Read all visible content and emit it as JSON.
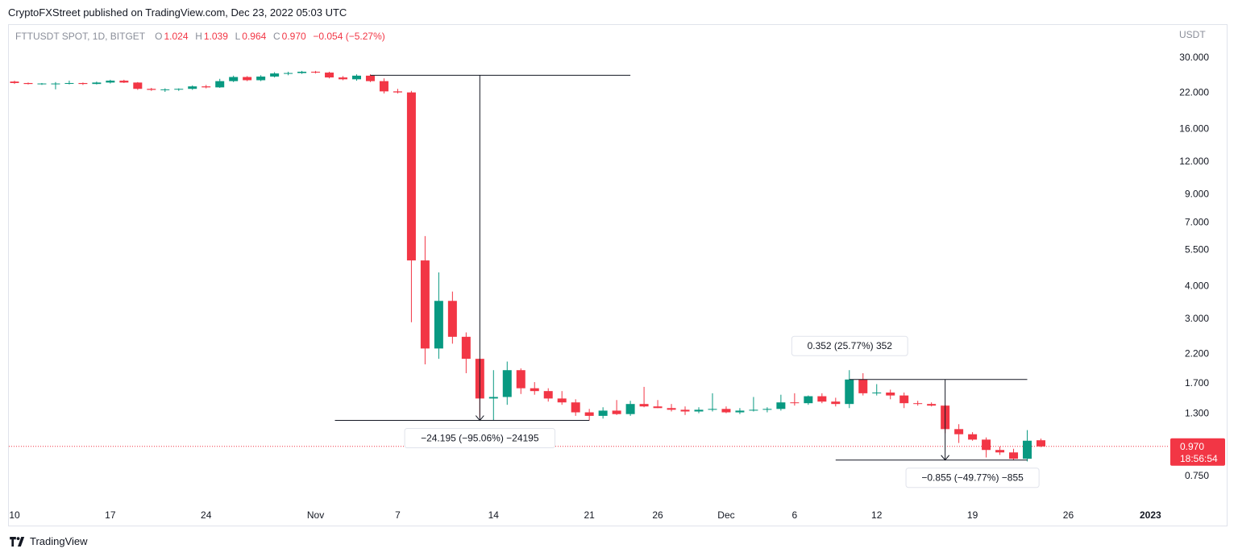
{
  "header": {
    "published": "CryptoFXStreet published on TradingView.com, Dec 23, 2022 05:03 UTC"
  },
  "legend": {
    "symbol": "FTTUSDT SPOT, 1D, BITGET",
    "o_label": "O",
    "o": "1.024",
    "h_label": "H",
    "h": "1.039",
    "l_label": "L",
    "l": "0.964",
    "c_label": "C",
    "c": "0.970",
    "change": "−0.054 (−5.27%)"
  },
  "footer": {
    "brand": "TradingView"
  },
  "colors": {
    "up": "#089981",
    "down": "#f23645",
    "grid": "#e0e3eb",
    "axis_text": "#8a8e99"
  },
  "chart_data": {
    "type": "candlestick",
    "scale": "log",
    "y_axis_title": "USDT",
    "y_ticks": [
      "30.000",
      "22.000",
      "16.000",
      "12.000",
      "9.000",
      "7.000",
      "5.500",
      "4.000",
      "3.000",
      "2.200",
      "1.700",
      "1.300",
      "0.750"
    ],
    "x_ticks": [
      {
        "label": "10",
        "date": "2022-10-10"
      },
      {
        "label": "17",
        "date": "2022-10-17"
      },
      {
        "label": "24",
        "date": "2022-10-24"
      },
      {
        "label": "Nov",
        "date": "2022-11-01"
      },
      {
        "label": "7",
        "date": "2022-11-07"
      },
      {
        "label": "14",
        "date": "2022-11-14"
      },
      {
        "label": "21",
        "date": "2022-11-21"
      },
      {
        "label": "26",
        "date": "2022-11-26"
      },
      {
        "label": "Dec",
        "date": "2022-12-01"
      },
      {
        "label": "6",
        "date": "2022-12-06"
      },
      {
        "label": "12",
        "date": "2022-12-12"
      },
      {
        "label": "19",
        "date": "2022-12-19"
      },
      {
        "label": "26",
        "date": "2022-12-26"
      },
      {
        "label": "2023",
        "date": "2023-01-01"
      }
    ],
    "candles": [
      {
        "date": "2022-10-10",
        "o": 24.2,
        "h": 24.4,
        "l": 23.7,
        "c": 23.9
      },
      {
        "date": "2022-10-11",
        "o": 23.9,
        "h": 24.0,
        "l": 23.6,
        "c": 23.7
      },
      {
        "date": "2022-10-12",
        "o": 23.7,
        "h": 23.9,
        "l": 23.5,
        "c": 23.8
      },
      {
        "date": "2022-10-13",
        "o": 23.7,
        "h": 24.1,
        "l": 22.6,
        "c": 23.8
      },
      {
        "date": "2022-10-14",
        "o": 23.8,
        "h": 24.4,
        "l": 23.6,
        "c": 23.9
      },
      {
        "date": "2022-10-15",
        "o": 23.9,
        "h": 24.0,
        "l": 23.5,
        "c": 23.7
      },
      {
        "date": "2022-10-16",
        "o": 23.7,
        "h": 24.2,
        "l": 23.6,
        "c": 24.0
      },
      {
        "date": "2022-10-17",
        "o": 24.0,
        "h": 24.6,
        "l": 23.8,
        "c": 24.4
      },
      {
        "date": "2022-10-18",
        "o": 24.4,
        "h": 24.6,
        "l": 23.9,
        "c": 24.0
      },
      {
        "date": "2022-10-19",
        "o": 24.0,
        "h": 24.1,
        "l": 22.5,
        "c": 22.7
      },
      {
        "date": "2022-10-20",
        "o": 22.7,
        "h": 22.9,
        "l": 22.3,
        "c": 22.5
      },
      {
        "date": "2022-10-21",
        "o": 22.5,
        "h": 22.8,
        "l": 22.1,
        "c": 22.6
      },
      {
        "date": "2022-10-22",
        "o": 22.6,
        "h": 22.8,
        "l": 22.3,
        "c": 22.7
      },
      {
        "date": "2022-10-23",
        "o": 22.7,
        "h": 23.4,
        "l": 22.5,
        "c": 23.2
      },
      {
        "date": "2022-10-24",
        "o": 23.2,
        "h": 23.5,
        "l": 22.8,
        "c": 23.0
      },
      {
        "date": "2022-10-25",
        "o": 23.0,
        "h": 24.8,
        "l": 22.9,
        "c": 24.3
      },
      {
        "date": "2022-10-26",
        "o": 24.3,
        "h": 25.5,
        "l": 24.1,
        "c": 25.2
      },
      {
        "date": "2022-10-27",
        "o": 25.2,
        "h": 25.4,
        "l": 24.3,
        "c": 24.5
      },
      {
        "date": "2022-10-28",
        "o": 24.5,
        "h": 25.6,
        "l": 24.3,
        "c": 25.3
      },
      {
        "date": "2022-10-29",
        "o": 25.3,
        "h": 26.3,
        "l": 25.1,
        "c": 26.0
      },
      {
        "date": "2022-10-30",
        "o": 26.0,
        "h": 26.4,
        "l": 25.6,
        "c": 26.1
      },
      {
        "date": "2022-10-31",
        "o": 26.1,
        "h": 26.6,
        "l": 25.9,
        "c": 26.4
      },
      {
        "date": "2022-11-01",
        "o": 26.4,
        "h": 26.6,
        "l": 26.0,
        "c": 26.2
      },
      {
        "date": "2022-11-02",
        "o": 26.2,
        "h": 26.4,
        "l": 24.9,
        "c": 25.1
      },
      {
        "date": "2022-11-03",
        "o": 25.1,
        "h": 25.4,
        "l": 24.5,
        "c": 24.7
      },
      {
        "date": "2022-11-04",
        "o": 24.7,
        "h": 25.8,
        "l": 24.4,
        "c": 25.5
      },
      {
        "date": "2022-11-05",
        "o": 25.5,
        "h": 25.8,
        "l": 24.1,
        "c": 24.3
      },
      {
        "date": "2022-11-06",
        "o": 24.3,
        "h": 24.9,
        "l": 21.8,
        "c": 22.2
      },
      {
        "date": "2022-11-07",
        "o": 22.2,
        "h": 22.7,
        "l": 21.8,
        "c": 22.0
      },
      {
        "date": "2022-11-08",
        "o": 22.0,
        "h": 22.3,
        "l": 2.9,
        "c": 5.0
      },
      {
        "date": "2022-11-09",
        "o": 5.0,
        "h": 6.2,
        "l": 2.0,
        "c": 2.3
      },
      {
        "date": "2022-11-10",
        "o": 2.3,
        "h": 4.5,
        "l": 2.1,
        "c": 3.5
      },
      {
        "date": "2022-11-11",
        "o": 3.5,
        "h": 3.8,
        "l": 2.4,
        "c": 2.55
      },
      {
        "date": "2022-11-12",
        "o": 2.55,
        "h": 2.65,
        "l": 1.85,
        "c": 2.1
      },
      {
        "date": "2022-11-13",
        "o": 2.1,
        "h": 2.1,
        "l": 1.25,
        "c": 1.48
      },
      {
        "date": "2022-11-14",
        "o": 1.48,
        "h": 1.9,
        "l": 1.22,
        "c": 1.5
      },
      {
        "date": "2022-11-15",
        "o": 1.5,
        "h": 2.05,
        "l": 1.4,
        "c": 1.9
      },
      {
        "date": "2022-11-16",
        "o": 1.9,
        "h": 1.93,
        "l": 1.54,
        "c": 1.62
      },
      {
        "date": "2022-11-17",
        "o": 1.62,
        "h": 1.71,
        "l": 1.53,
        "c": 1.58
      },
      {
        "date": "2022-11-18",
        "o": 1.58,
        "h": 1.62,
        "l": 1.44,
        "c": 1.48
      },
      {
        "date": "2022-11-19",
        "o": 1.48,
        "h": 1.58,
        "l": 1.4,
        "c": 1.43
      },
      {
        "date": "2022-11-20",
        "o": 1.43,
        "h": 1.47,
        "l": 1.27,
        "c": 1.31
      },
      {
        "date": "2022-11-21",
        "o": 1.31,
        "h": 1.35,
        "l": 1.22,
        "c": 1.27
      },
      {
        "date": "2022-11-22",
        "o": 1.27,
        "h": 1.37,
        "l": 1.24,
        "c": 1.33
      },
      {
        "date": "2022-11-23",
        "o": 1.33,
        "h": 1.46,
        "l": 1.28,
        "c": 1.29
      },
      {
        "date": "2022-11-24",
        "o": 1.29,
        "h": 1.45,
        "l": 1.27,
        "c": 1.41
      },
      {
        "date": "2022-11-25",
        "o": 1.41,
        "h": 1.64,
        "l": 1.37,
        "c": 1.38
      },
      {
        "date": "2022-11-26",
        "o": 1.38,
        "h": 1.46,
        "l": 1.36,
        "c": 1.36
      },
      {
        "date": "2022-11-27",
        "o": 1.36,
        "h": 1.41,
        "l": 1.32,
        "c": 1.34
      },
      {
        "date": "2022-11-28",
        "o": 1.34,
        "h": 1.38,
        "l": 1.28,
        "c": 1.32
      },
      {
        "date": "2022-11-29",
        "o": 1.32,
        "h": 1.37,
        "l": 1.3,
        "c": 1.34
      },
      {
        "date": "2022-11-30",
        "o": 1.34,
        "h": 1.55,
        "l": 1.32,
        "c": 1.35
      },
      {
        "date": "2022-12-01",
        "o": 1.35,
        "h": 1.38,
        "l": 1.3,
        "c": 1.31
      },
      {
        "date": "2022-12-02",
        "o": 1.31,
        "h": 1.36,
        "l": 1.29,
        "c": 1.33
      },
      {
        "date": "2022-12-03",
        "o": 1.33,
        "h": 1.5,
        "l": 1.32,
        "c": 1.34
      },
      {
        "date": "2022-12-04",
        "o": 1.34,
        "h": 1.37,
        "l": 1.31,
        "c": 1.35
      },
      {
        "date": "2022-12-05",
        "o": 1.35,
        "h": 1.53,
        "l": 1.33,
        "c": 1.43
      },
      {
        "date": "2022-12-06",
        "o": 1.43,
        "h": 1.55,
        "l": 1.39,
        "c": 1.42
      },
      {
        "date": "2022-12-07",
        "o": 1.42,
        "h": 1.52,
        "l": 1.4,
        "c": 1.51
      },
      {
        "date": "2022-12-08",
        "o": 1.51,
        "h": 1.55,
        "l": 1.42,
        "c": 1.44
      },
      {
        "date": "2022-12-09",
        "o": 1.44,
        "h": 1.49,
        "l": 1.38,
        "c": 1.41
      },
      {
        "date": "2022-12-10",
        "o": 1.41,
        "h": 1.9,
        "l": 1.36,
        "c": 1.75
      },
      {
        "date": "2022-12-11",
        "o": 1.75,
        "h": 1.85,
        "l": 1.52,
        "c": 1.55
      },
      {
        "date": "2022-12-12",
        "o": 1.55,
        "h": 1.68,
        "l": 1.52,
        "c": 1.56
      },
      {
        "date": "2022-12-13",
        "o": 1.56,
        "h": 1.6,
        "l": 1.47,
        "c": 1.52
      },
      {
        "date": "2022-12-14",
        "o": 1.52,
        "h": 1.56,
        "l": 1.36,
        "c": 1.42
      },
      {
        "date": "2022-12-15",
        "o": 1.42,
        "h": 1.45,
        "l": 1.39,
        "c": 1.41
      },
      {
        "date": "2022-12-16",
        "o": 1.41,
        "h": 1.43,
        "l": 1.38,
        "c": 1.39
      },
      {
        "date": "2022-12-17",
        "o": 1.39,
        "h": 1.4,
        "l": 1.09,
        "c": 1.13
      },
      {
        "date": "2022-12-18",
        "o": 1.13,
        "h": 1.18,
        "l": 1.0,
        "c": 1.08
      },
      {
        "date": "2022-12-19",
        "o": 1.08,
        "h": 1.1,
        "l": 1.02,
        "c": 1.03
      },
      {
        "date": "2022-12-20",
        "o": 1.03,
        "h": 1.05,
        "l": 0.88,
        "c": 0.94
      },
      {
        "date": "2022-12-21",
        "o": 0.94,
        "h": 0.97,
        "l": 0.9,
        "c": 0.92
      },
      {
        "date": "2022-12-22",
        "o": 0.92,
        "h": 0.95,
        "l": 0.86,
        "c": 0.87
      },
      {
        "date": "2022-12-23",
        "o": 0.87,
        "h": 1.12,
        "l": 0.85,
        "c": 1.02
      },
      {
        "date": "2022-12-24",
        "o": 1.024,
        "h": 1.039,
        "l": 0.964,
        "c": 0.97
      }
    ],
    "last_price": {
      "value": 0.97,
      "label": "0.970",
      "countdown": "18:56:54"
    },
    "measures": [
      {
        "from_date": "2022-11-05",
        "to_date": "2022-11-13",
        "from_price": 25.6,
        "to_price": 1.22,
        "label": "−24.195 (−95.06%) −24195",
        "direction": "down"
      },
      {
        "from_date": "2022-12-10",
        "to_date": "2022-12-17",
        "from_price": 0.86,
        "to_price": 1.9,
        "label": "0.352 (25.77%) 352",
        "direction": "up",
        "horiz_price": 1.75
      },
      {
        "from_date": "2022-12-10",
        "to_date": "2022-12-23",
        "from_price": 1.75,
        "to_price": 0.86,
        "label": "−0.855 (−49.77%) −855",
        "direction": "down"
      }
    ]
  }
}
